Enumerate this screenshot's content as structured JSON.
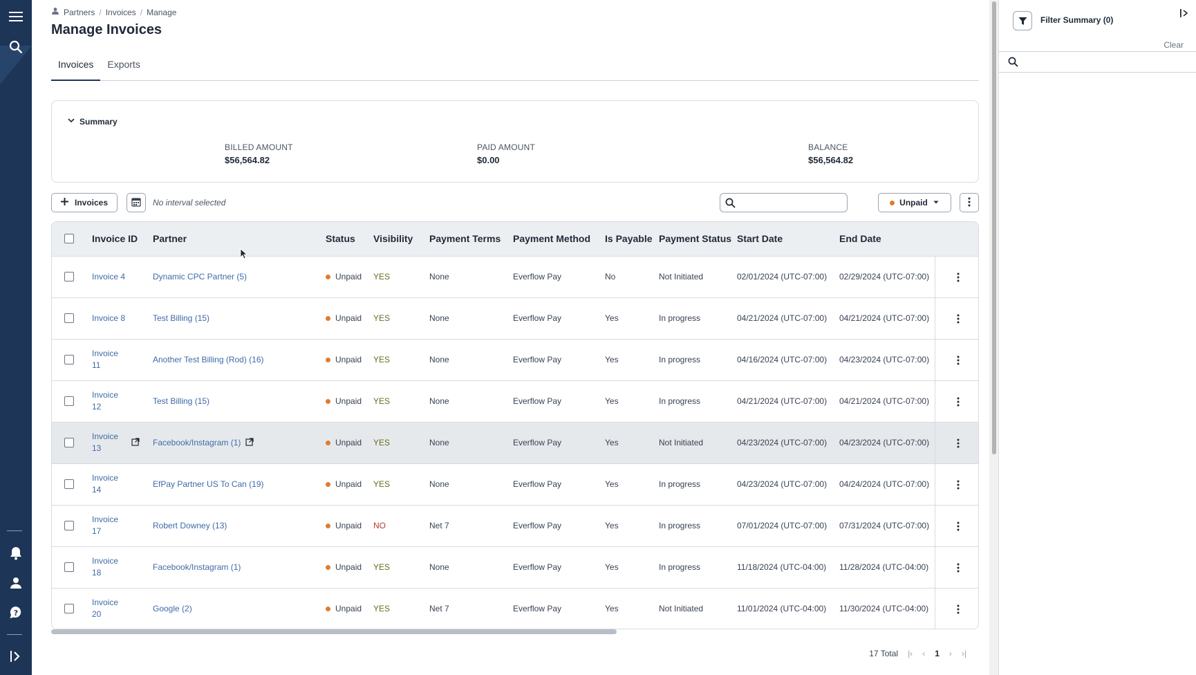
{
  "breadcrumb": [
    "Partners",
    "Invoices",
    "Manage"
  ],
  "page_title": "Manage Invoices",
  "tabs": [
    {
      "label": "Invoices",
      "active": true
    },
    {
      "label": "Exports",
      "active": false
    }
  ],
  "summary": {
    "heading": "Summary",
    "billed_label": "BILLED AMOUNT",
    "billed_value": "$56,564.82",
    "paid_label": "PAID AMOUNT",
    "paid_value": "$0.00",
    "balance_label": "BALANCE",
    "balance_value": "$56,564.82"
  },
  "toolbar": {
    "add_invoices_label": "Invoices",
    "interval_text": "No interval selected",
    "search_placeholder": "",
    "status_filter_label": "Unpaid"
  },
  "table": {
    "columns": [
      "Invoice ID",
      "Partner",
      "Status",
      "Visibility",
      "Payment Terms",
      "Payment Method",
      "Is Payable",
      "Payment Status",
      "Start Date",
      "End Date"
    ],
    "rows": [
      {
        "id": "Invoice 4",
        "partner": "Dynamic CPC Partner (5)",
        "status": "Unpaid",
        "visibility": "YES",
        "terms": "None",
        "method": "Everflow Pay",
        "payable": "No",
        "payment_status": "Not Initiated",
        "start": "02/01/2024 (UTC-07:00)",
        "end": "02/29/2024 (UTC-07:00)"
      },
      {
        "id": "Invoice 8",
        "partner": "Test Billing (15)",
        "status": "Unpaid",
        "visibility": "YES",
        "terms": "None",
        "method": "Everflow Pay",
        "payable": "Yes",
        "payment_status": "In progress",
        "start": "04/21/2024 (UTC-07:00)",
        "end": "04/21/2024 (UTC-07:00)"
      },
      {
        "id": "Invoice 11",
        "partner": "Another Test Billing (Rod) (16)",
        "status": "Unpaid",
        "visibility": "YES",
        "terms": "None",
        "method": "Everflow Pay",
        "payable": "Yes",
        "payment_status": "In progress",
        "start": "04/16/2024 (UTC-07:00)",
        "end": "04/23/2024 (UTC-07:00)"
      },
      {
        "id": "Invoice 12",
        "partner": "Test Billing (15)",
        "status": "Unpaid",
        "visibility": "YES",
        "terms": "None",
        "method": "Everflow Pay",
        "payable": "Yes",
        "payment_status": "In progress",
        "start": "04/21/2024 (UTC-07:00)",
        "end": "04/21/2024 (UTC-07:00)"
      },
      {
        "id": "Invoice 13",
        "partner": "Facebook/Instagram (1)",
        "status": "Unpaid",
        "visibility": "YES",
        "terms": "None",
        "method": "Everflow Pay",
        "payable": "Yes",
        "payment_status": "Not Initiated",
        "start": "04/23/2024 (UTC-07:00)",
        "end": "04/23/2024 (UTC-07:00)"
      },
      {
        "id": "Invoice 14",
        "partner": "EfPay Partner US To Can (19)",
        "status": "Unpaid",
        "visibility": "YES",
        "terms": "None",
        "method": "Everflow Pay",
        "payable": "Yes",
        "payment_status": "In progress",
        "start": "04/23/2024 (UTC-07:00)",
        "end": "04/24/2024 (UTC-07:00)"
      },
      {
        "id": "Invoice 17",
        "partner": "Robert Downey (13)",
        "status": "Unpaid",
        "visibility": "NO",
        "terms": "Net 7",
        "method": "Everflow Pay",
        "payable": "Yes",
        "payment_status": "In progress",
        "start": "07/01/2024 (UTC-07:00)",
        "end": "07/31/2024 (UTC-07:00)"
      },
      {
        "id": "Invoice 18",
        "partner": "Facebook/Instagram (1)",
        "status": "Unpaid",
        "visibility": "YES",
        "terms": "None",
        "method": "Everflow Pay",
        "payable": "Yes",
        "payment_status": "In progress",
        "start": "11/18/2024 (UTC-04:00)",
        "end": "11/28/2024 (UTC-04:00)"
      },
      {
        "id": "Invoice 20",
        "partner": "Google (2)",
        "status": "Unpaid",
        "visibility": "YES",
        "terms": "Net 7",
        "method": "Everflow Pay",
        "payable": "Yes",
        "payment_status": "Not Initiated",
        "start": "11/01/2024 (UTC-04:00)",
        "end": "11/30/2024 (UTC-04:00)"
      }
    ]
  },
  "pagination": {
    "total_text": "17 Total",
    "current_page": "1"
  },
  "filter_panel": {
    "title": "Filter Summary (0)",
    "clear_label": "Clear",
    "search_placeholder": ""
  },
  "colors": {
    "sidebar": "#1d3557",
    "link": "#3f6aa8",
    "unpaid_dot": "#e07b2e",
    "visibility_yes": "#6b6b1f",
    "visibility_no": "#b23b2e"
  }
}
